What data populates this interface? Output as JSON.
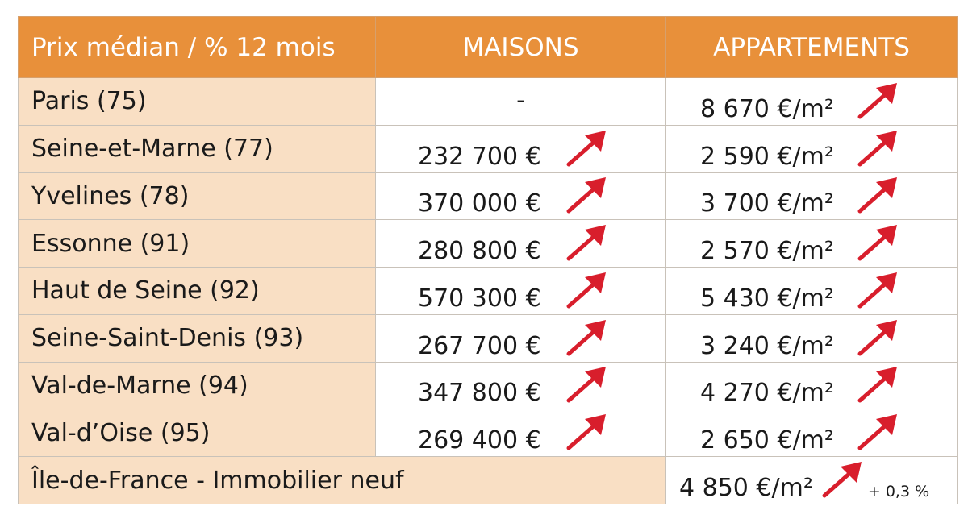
{
  "header": {
    "label": "Prix médian / % 12 mois",
    "col_maisons": "MAISONS",
    "col_appartements": "APPARTEMENTS"
  },
  "rows": [
    {
      "dept": "Paris (75)",
      "maison": "-",
      "maison_arrow": false,
      "appart": "8 670 €/m²",
      "appart_arrow": true
    },
    {
      "dept": "Seine-et-Marne (77)",
      "maison": "232 700 €",
      "maison_arrow": true,
      "appart": "2 590 €/m²",
      "appart_arrow": true
    },
    {
      "dept": "Yvelines (78)",
      "maison": "370 000 €",
      "maison_arrow": true,
      "appart": "3 700 €/m²",
      "appart_arrow": true
    },
    {
      "dept": "Essonne (91)",
      "maison": "280 800 €",
      "maison_arrow": true,
      "appart": "2 570 €/m²",
      "appart_arrow": true
    },
    {
      "dept": "Haut de Seine (92)",
      "maison": "570 300 €",
      "maison_arrow": true,
      "appart": "5 430 €/m²",
      "appart_arrow": true
    },
    {
      "dept": "Seine-Saint-Denis (93)",
      "maison": "267 700 €",
      "maison_arrow": true,
      "appart": "3 240 €/m²",
      "appart_arrow": true
    },
    {
      "dept": "Val-de-Marne (94)",
      "maison": "347 800 €",
      "maison_arrow": true,
      "appart": "4 270 €/m²",
      "appart_arrow": true
    },
    {
      "dept": "Val-d’Oise (95)",
      "maison": "269 400 €",
      "maison_arrow": true,
      "appart": "2 650 €/m²",
      "appart_arrow": true
    }
  ],
  "neuf": {
    "label": "Île-de-France - Immobilier neuf",
    "value": "4 850 €/m²",
    "change": "+ 0,3 %"
  },
  "icons": {
    "trend": "arrow-up-right-icon"
  },
  "colors": {
    "header_bg": "#e8903a",
    "label_bg": "#f9dfc4",
    "arrow": "#d81e2c"
  }
}
